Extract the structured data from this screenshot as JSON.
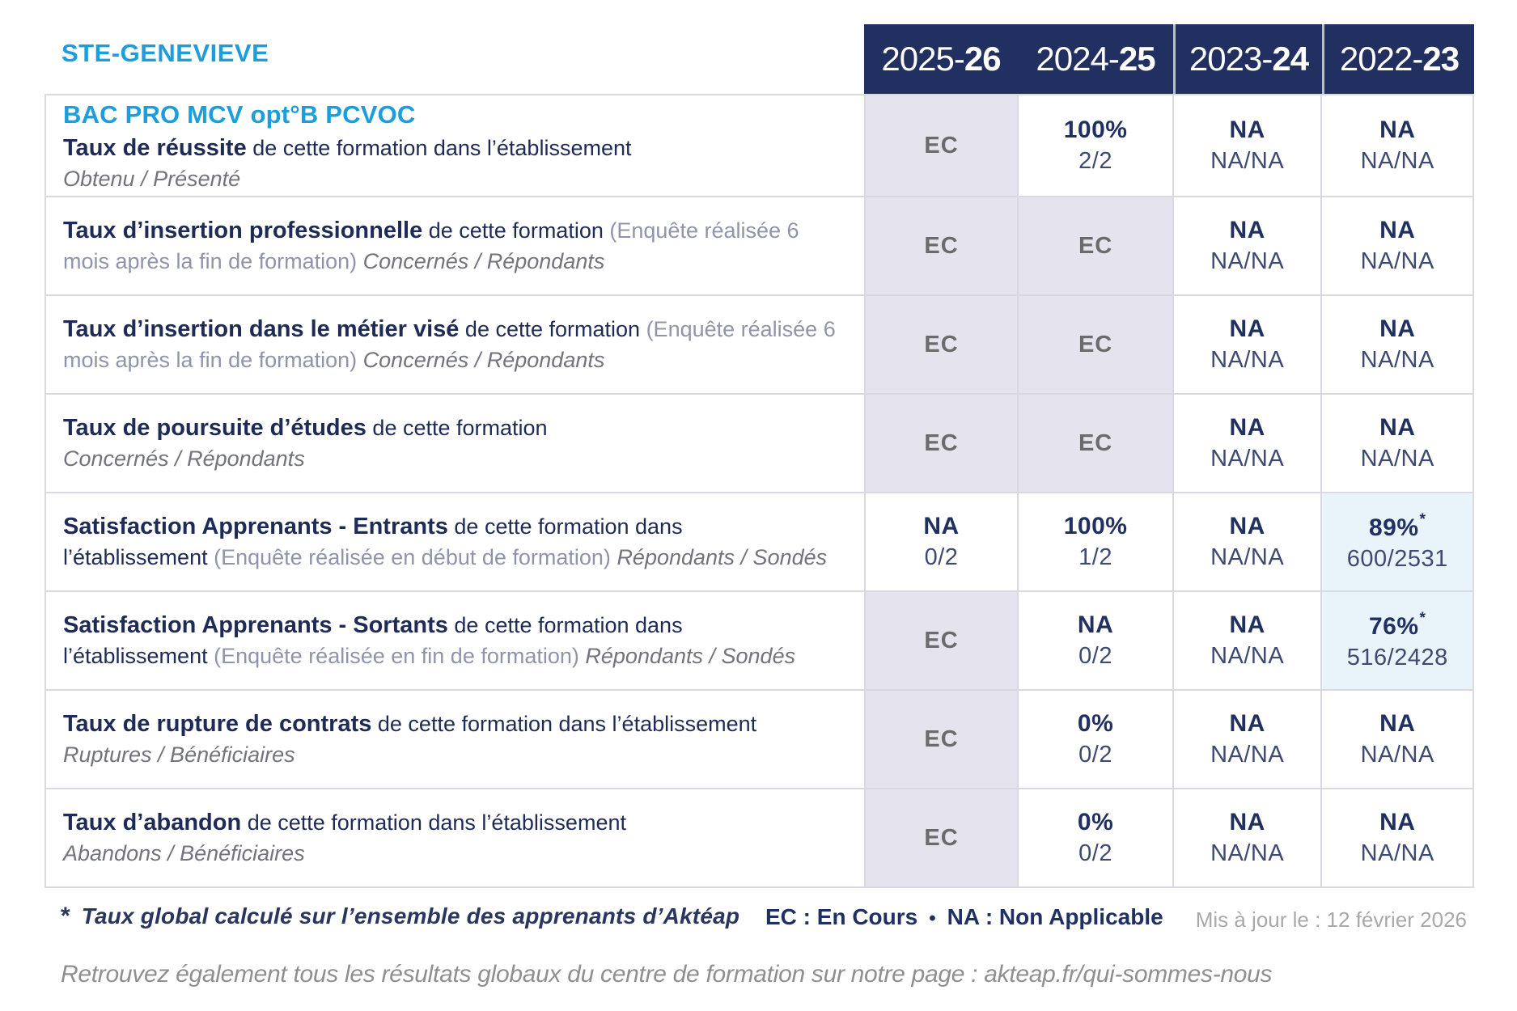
{
  "school": "STE-GENEVIEVE",
  "columns": [
    {
      "prefix": "2025-",
      "suffix": "26"
    },
    {
      "prefix": "2024-",
      "suffix": "25"
    },
    {
      "prefix": "2023-",
      "suffix": "24"
    },
    {
      "prefix": "2022-",
      "suffix": "23"
    }
  ],
  "table": {
    "rows": [
      {
        "program": "BAC PRO MCV opt°B PCVOC",
        "title": "Taux de réussite",
        "desc": "de cette formation dans l’établissement",
        "paren": "",
        "inline_note": "",
        "sub": "Obtenu / Présenté",
        "cells": [
          {
            "value": "EC",
            "sub": "",
            "bg": "lavender"
          },
          {
            "value": "100%",
            "sub": "2/2",
            "bg": "white"
          },
          {
            "value": "NA",
            "sub": "NA/NA",
            "bg": "white"
          },
          {
            "value": "NA",
            "sub": "NA/NA",
            "bg": "white"
          }
        ]
      },
      {
        "program": "",
        "title": "Taux d’insertion professionnelle",
        "desc": "de cette formation",
        "paren": "(Enquête réalisée 6 mois après la fin de formation)",
        "inline_note": "Concernés / Répondants",
        "sub": "",
        "cells": [
          {
            "value": "EC",
            "sub": "",
            "bg": "lavender"
          },
          {
            "value": "EC",
            "sub": "",
            "bg": "lavender"
          },
          {
            "value": "NA",
            "sub": "NA/NA",
            "bg": "white"
          },
          {
            "value": "NA",
            "sub": "NA/NA",
            "bg": "white"
          }
        ]
      },
      {
        "program": "",
        "title": "Taux d’insertion dans le métier visé",
        "desc": "de cette formation",
        "paren": "(Enquête réalisée 6 mois après la fin de formation)",
        "inline_note": "Concernés / Répondants",
        "sub": "",
        "cells": [
          {
            "value": "EC",
            "sub": "",
            "bg": "lavender"
          },
          {
            "value": "EC",
            "sub": "",
            "bg": "lavender"
          },
          {
            "value": "NA",
            "sub": "NA/NA",
            "bg": "white"
          },
          {
            "value": "NA",
            "sub": "NA/NA",
            "bg": "white"
          }
        ]
      },
      {
        "program": "",
        "title": "Taux de poursuite d’études",
        "desc": "de cette formation",
        "paren": "",
        "inline_note": "",
        "sub": "Concernés / Répondants",
        "cells": [
          {
            "value": "EC",
            "sub": "",
            "bg": "lavender"
          },
          {
            "value": "EC",
            "sub": "",
            "bg": "lavender"
          },
          {
            "value": "NA",
            "sub": "NA/NA",
            "bg": "white"
          },
          {
            "value": "NA",
            "sub": "NA/NA",
            "bg": "white"
          }
        ]
      },
      {
        "program": "",
        "title": "Satisfaction Apprenants - Entrants",
        "desc": "de cette formation dans l’établissement",
        "paren": "(Enquête réalisée en début de formation)",
        "inline_note": "Répondants / Sondés",
        "sub": "",
        "cells": [
          {
            "value": "NA",
            "sub": "0/2",
            "bg": "white"
          },
          {
            "value": "100%",
            "sub": "1/2",
            "bg": "white"
          },
          {
            "value": "NA",
            "sub": "NA/NA",
            "bg": "white"
          },
          {
            "value": "89%",
            "star": "*",
            "sub": "600/2531",
            "bg": "blue"
          }
        ]
      },
      {
        "program": "",
        "title": "Satisfaction Apprenants - Sortants",
        "desc": "de cette formation dans l’établissement",
        "paren": "(Enquête réalisée en fin de formation)",
        "inline_note": "Répondants / Sondés",
        "sub": "",
        "cells": [
          {
            "value": "EC",
            "sub": "",
            "bg": "lavender"
          },
          {
            "value": "NA",
            "sub": "0/2",
            "bg": "white"
          },
          {
            "value": "NA",
            "sub": "NA/NA",
            "bg": "white"
          },
          {
            "value": "76%",
            "star": "*",
            "sub": "516/2428",
            "bg": "blue"
          }
        ]
      },
      {
        "program": "",
        "title": "Taux de rupture de contrats",
        "desc": "de cette formation dans l’établissement",
        "paren": "",
        "inline_note": "",
        "sub": "Ruptures / Bénéficiaires",
        "cells": [
          {
            "value": "EC",
            "sub": "",
            "bg": "lavender"
          },
          {
            "value": "0%",
            "sub": "0/2",
            "bg": "white"
          },
          {
            "value": "NA",
            "sub": "NA/NA",
            "bg": "white"
          },
          {
            "value": "NA",
            "sub": "NA/NA",
            "bg": "white"
          }
        ]
      },
      {
        "program": "",
        "title": "Taux d’abandon",
        "desc": "de cette formation dans l’établissement",
        "paren": "",
        "inline_note": "",
        "sub": "Abandons / Bénéficiaires",
        "cells": [
          {
            "value": "EC",
            "sub": "",
            "bg": "lavender"
          },
          {
            "value": "0%",
            "sub": "0/2",
            "bg": "white"
          },
          {
            "value": "NA",
            "sub": "NA/NA",
            "bg": "white"
          },
          {
            "value": "NA",
            "sub": "NA/NA",
            "bg": "white"
          }
        ]
      }
    ]
  },
  "footer": {
    "star": "*",
    "note": "Taux global calculé sur l’ensemble des apprenants d’Aktéap",
    "legend_ec": "EC : En Cours",
    "bullet": "•",
    "legend_na": "NA : Non Applicable",
    "updated": "Mis à jour le : 12 février 2026",
    "info_prefix": "Retrouvez également tous les résultats globaux du centre de formation sur notre page : ",
    "info_url": "akteap.fr/qui-sommes-nous"
  }
}
